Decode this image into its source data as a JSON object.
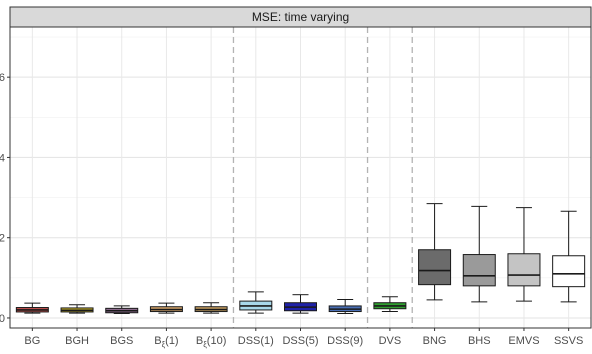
{
  "chart_data": {
    "type": "boxplot",
    "title": "MSE: time varying",
    "xlabel": "",
    "ylabel": "",
    "ylim": [
      -0.25,
      7.25
    ],
    "y_ticks": [
      0,
      2,
      4,
      6
    ],
    "y_tick_labels": [
      "0",
      "2",
      "4",
      "6"
    ],
    "grid": true,
    "legend": "none",
    "group_separators_after": [
      "B_ξ(10)",
      "DSS(9)",
      "DVS"
    ],
    "categories": [
      {
        "label": "BG",
        "base": "B",
        "sub": "",
        "suffix": "G"
      },
      {
        "label": "BGH",
        "base": "B",
        "sub": "",
        "suffix": "GH"
      },
      {
        "label": "BGS",
        "base": "B",
        "sub": "",
        "suffix": "GS"
      },
      {
        "label": "B_ξ(1)",
        "base": "B",
        "sub": "ξ",
        "suffix": "(1)"
      },
      {
        "label": "B_ξ(10)",
        "base": "B",
        "sub": "ξ",
        "suffix": "(10)"
      },
      {
        "label": "DSS(1)",
        "base": "DSS(1)",
        "sub": "",
        "suffix": ""
      },
      {
        "label": "DSS(5)",
        "base": "DSS(5)",
        "sub": "",
        "suffix": ""
      },
      {
        "label": "DSS(9)",
        "base": "DSS(9)",
        "sub": "",
        "suffix": ""
      },
      {
        "label": "DVS",
        "base": "DVS",
        "sub": "",
        "suffix": ""
      },
      {
        "label": "BNG",
        "base": "BNG",
        "sub": "",
        "suffix": ""
      },
      {
        "label": "BHS",
        "base": "BHS",
        "sub": "",
        "suffix": ""
      },
      {
        "label": "EMVS",
        "base": "EMVS",
        "sub": "",
        "suffix": ""
      },
      {
        "label": "SSVS",
        "base": "SSVS",
        "sub": "",
        "suffix": ""
      }
    ],
    "boxes": [
      {
        "category": "BG",
        "whisker_low": 0.12,
        "q1": 0.15,
        "median": 0.2,
        "q3": 0.26,
        "whisker_high": 0.37,
        "fill": "#c0504d"
      },
      {
        "category": "BGH",
        "whisker_low": 0.12,
        "q1": 0.15,
        "median": 0.19,
        "q3": 0.25,
        "whisker_high": 0.33,
        "fill": "#c9b42a"
      },
      {
        "category": "BGS",
        "whisker_low": 0.11,
        "q1": 0.13,
        "median": 0.18,
        "q3": 0.24,
        "whisker_high": 0.3,
        "fill": "#8b6a8c"
      },
      {
        "category": "B_ξ(1)",
        "whisker_low": 0.12,
        "q1": 0.16,
        "median": 0.21,
        "q3": 0.28,
        "whisker_high": 0.37,
        "fill": "#d4a56b"
      },
      {
        "category": "B_ξ(10)",
        "whisker_low": 0.12,
        "q1": 0.16,
        "median": 0.21,
        "q3": 0.28,
        "whisker_high": 0.38,
        "fill": "#c8a060"
      },
      {
        "category": "DSS(1)",
        "whisker_low": 0.12,
        "q1": 0.2,
        "median": 0.3,
        "q3": 0.42,
        "whisker_high": 0.65,
        "fill": "#a8d8ea"
      },
      {
        "category": "DSS(5)",
        "whisker_low": 0.12,
        "q1": 0.18,
        "median": 0.27,
        "q3": 0.38,
        "whisker_high": 0.58,
        "fill": "#1f22a8"
      },
      {
        "category": "DSS(9)",
        "whisker_low": 0.11,
        "q1": 0.16,
        "median": 0.22,
        "q3": 0.3,
        "whisker_high": 0.46,
        "fill": "#4a6fb5"
      },
      {
        "category": "DVS",
        "whisker_low": 0.16,
        "q1": 0.23,
        "median": 0.3,
        "q3": 0.38,
        "whisker_high": 0.53,
        "fill": "#2f9e2f"
      },
      {
        "category": "BNG",
        "whisker_low": 0.45,
        "q1": 0.83,
        "median": 1.18,
        "q3": 1.7,
        "whisker_high": 2.85,
        "fill": "#6b6b6b"
      },
      {
        "category": "BHS",
        "whisker_low": 0.4,
        "q1": 0.8,
        "median": 1.05,
        "q3": 1.58,
        "whisker_high": 2.78,
        "fill": "#9a9a9a"
      },
      {
        "category": "EMVS",
        "whisker_low": 0.42,
        "q1": 0.8,
        "median": 1.07,
        "q3": 1.6,
        "whisker_high": 2.75,
        "fill": "#c4c4c4"
      },
      {
        "category": "SSVS",
        "whisker_low": 0.4,
        "q1": 0.78,
        "median": 1.1,
        "q3": 1.55,
        "whisker_high": 2.66,
        "fill": "#ffffff"
      }
    ]
  }
}
